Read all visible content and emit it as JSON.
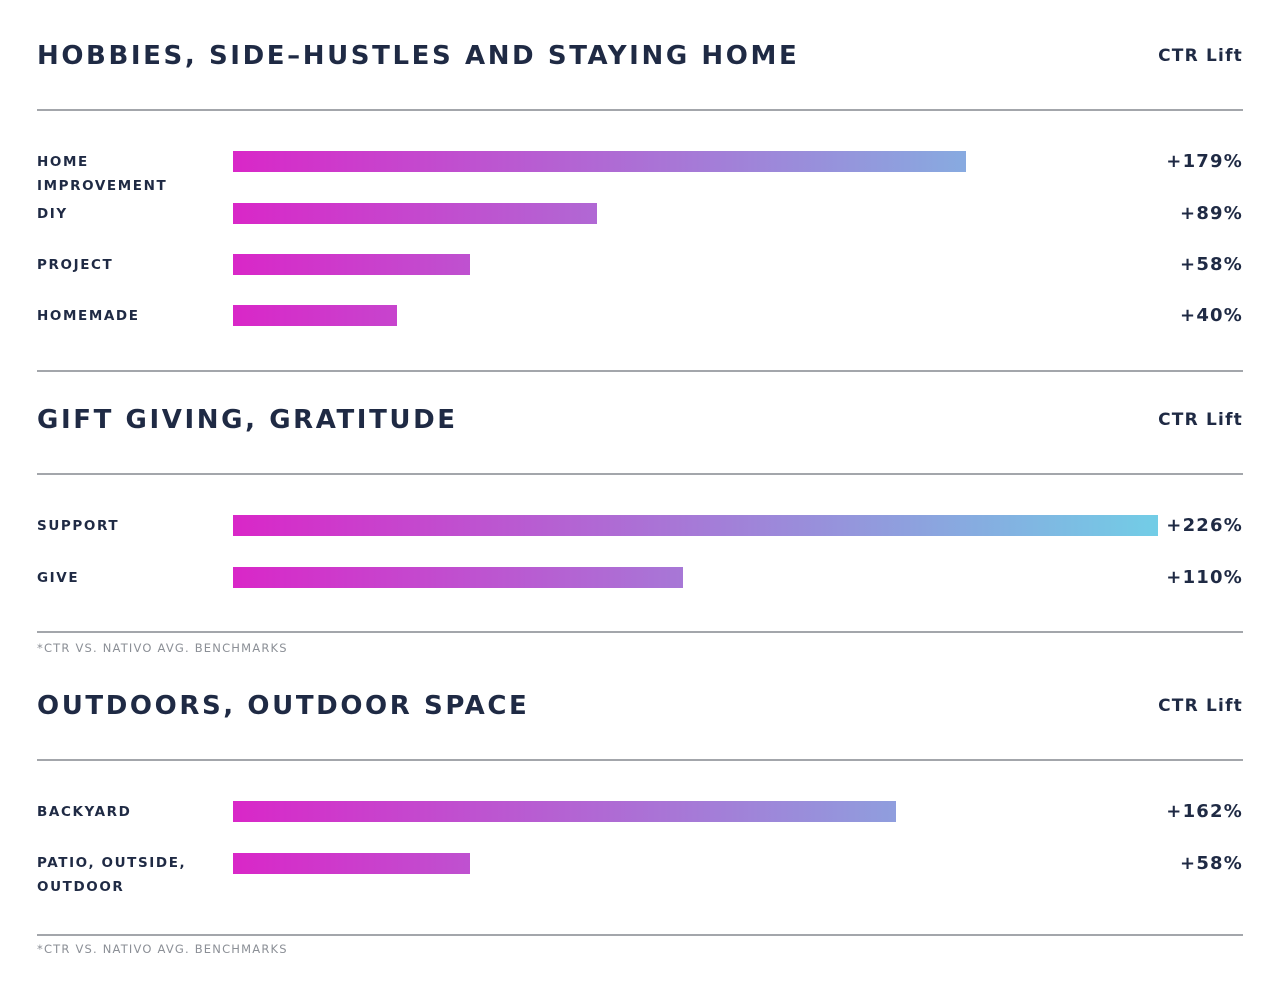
{
  "colors": {
    "text": "#1f2a44",
    "rule": "#a3a6ab",
    "footnote": "#8b8f96",
    "gradient_start": "#d927c8",
    "gradient_end": "#72cde6"
  },
  "chart_data": [
    {
      "type": "bar",
      "orientation": "horizontal",
      "title": "HOBBIES, SIDE–HUSTLES AND STAYING HOME",
      "value_header": "CTR Lift",
      "xlim": [
        0,
        226
      ],
      "categories": [
        "HOME IMPROVEMENT",
        "DIY",
        "PROJECT",
        "HOMEMADE"
      ],
      "values": [
        179,
        89,
        58,
        40
      ],
      "value_labels": [
        "+179%",
        "+89%",
        "+58%",
        "+40%"
      ]
    },
    {
      "type": "bar",
      "orientation": "horizontal",
      "title": "GIFT GIVING, GRATITUDE",
      "value_header": "CTR Lift",
      "xlim": [
        0,
        226
      ],
      "categories": [
        "SUPPORT",
        "GIVE"
      ],
      "values": [
        226,
        110
      ],
      "value_labels": [
        "+226%",
        "+110%"
      ],
      "footnote": "*CTR VS. NATIVO AVG. BENCHMARKS"
    },
    {
      "type": "bar",
      "orientation": "horizontal",
      "title": "OUTDOORS, OUTDOOR SPACE",
      "value_header": "CTR Lift",
      "xlim": [
        0,
        226
      ],
      "categories": [
        "BACKYARD",
        "PATIO, OUTSIDE, OUTDOOR"
      ],
      "values": [
        162,
        58
      ],
      "value_labels": [
        "+162%",
        "+58%"
      ],
      "footnote": "*CTR VS. NATIVO AVG. BENCHMARKS"
    }
  ]
}
